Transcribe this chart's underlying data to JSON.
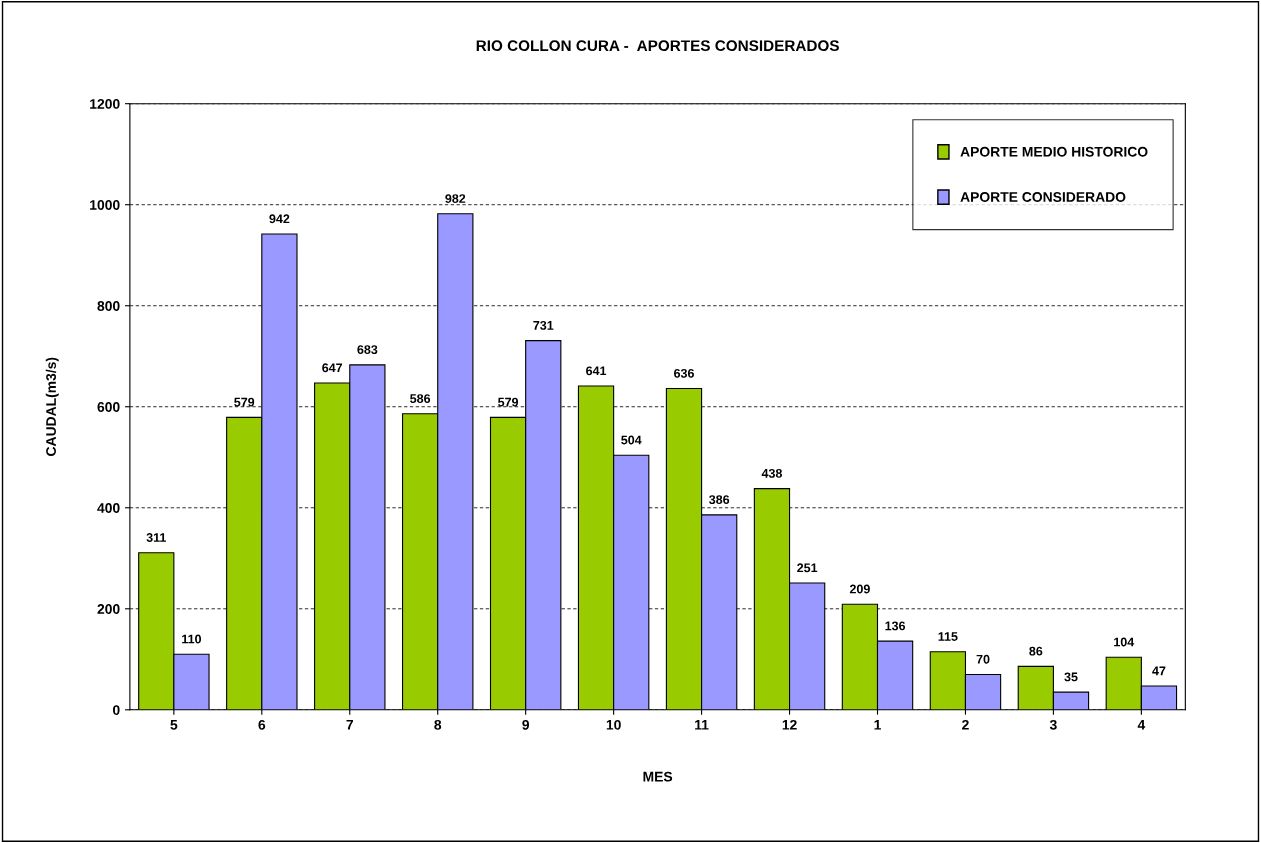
{
  "chart_data": {
    "type": "bar",
    "title": "RIO COLLON CURA -  APORTES CONSIDERADOS",
    "xlabel": "MES",
    "ylabel": "CAUDAL(m3/s)",
    "categories": [
      "5",
      "6",
      "7",
      "8",
      "9",
      "10",
      "11",
      "12",
      "1",
      "2",
      "3",
      "4"
    ],
    "series": [
      {
        "name": "APORTE MEDIO HISTORICO",
        "color": "#99cc00",
        "values": [
          311,
          579,
          647,
          586,
          579,
          641,
          636,
          438,
          209,
          115,
          86,
          104
        ]
      },
      {
        "name": "APORTE CONSIDERADO",
        "color": "#9999ff",
        "values": [
          110,
          942,
          683,
          982,
          731,
          504,
          386,
          251,
          136,
          70,
          35,
          47
        ]
      }
    ],
    "ylim": [
      0,
      1200
    ],
    "yticks": [
      0,
      200,
      400,
      600,
      800,
      1000,
      1200
    ],
    "grid": "y",
    "legend": "top right",
    "data_labels": true
  }
}
